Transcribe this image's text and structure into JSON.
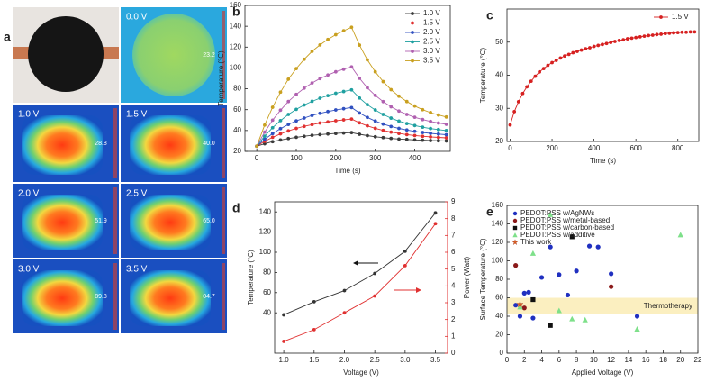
{
  "panel_a": {
    "label": "a",
    "images": [
      {
        "voltage": "0.0 V",
        "reading": "23.2"
      },
      {
        "voltage": "1.0 V",
        "reading": "28.8"
      },
      {
        "voltage": "1.5 V",
        "reading": "40.0"
      },
      {
        "voltage": "2.0 V",
        "reading": "51.9"
      },
      {
        "voltage": "2.5 V",
        "reading": "65.0"
      },
      {
        "voltage": "3.0 V",
        "reading": "89.8"
      },
      {
        "voltage": "3.5 V",
        "reading": "04.7"
      }
    ]
  },
  "chart_data": [
    {
      "panel_label": "b",
      "type": "line",
      "xlabel": "Time (s)",
      "ylabel": "Temperature (°C)",
      "x": [
        0,
        20,
        40,
        60,
        80,
        100,
        120,
        140,
        160,
        180,
        200,
        220,
        240,
        260,
        280,
        300,
        320,
        340,
        360,
        380,
        400,
        420,
        440,
        460,
        480
      ],
      "series": [
        {
          "name": "1.0 V",
          "color": "#3a3a3a",
          "values": [
            25,
            27.3,
            29.3,
            30.9,
            32.3,
            33.5,
            34.5,
            35.4,
            36.1,
            36.7,
            37.2,
            37.6,
            38,
            36.4,
            35.1,
            34.0,
            33.2,
            32.4,
            31.8,
            31.4,
            31.0,
            30.7,
            30.4,
            30.2,
            30.0
          ]
        },
        {
          "name": "1.5 V",
          "color": "#e03030",
          "values": [
            25,
            29.6,
            33.5,
            36.8,
            39.6,
            42.0,
            44.0,
            45.7,
            47.2,
            48.3,
            49.4,
            50.2,
            51,
            47.4,
            44.5,
            42.1,
            40.1,
            38.5,
            37.2,
            36.1,
            35.2,
            34.5,
            33.9,
            33.4,
            33.0
          ]
        },
        {
          "name": "2.0 V",
          "color": "#3050c0",
          "values": [
            25,
            31.6,
            37.1,
            41.8,
            45.8,
            49.2,
            52.0,
            54.5,
            56.5,
            58.2,
            59.7,
            60.9,
            62,
            56.8,
            52.6,
            49.1,
            46.2,
            43.9,
            42.0,
            40.5,
            39.2,
            38.1,
            37.3,
            36.6,
            36.0
          ]
        },
        {
          "name": "2.5 V",
          "color": "#1fa0a0",
          "values": [
            25,
            34.6,
            42.7,
            49.5,
            55.4,
            60.3,
            64.5,
            68.0,
            71.0,
            73.5,
            75.7,
            77.4,
            79,
            71.2,
            64.8,
            59.7,
            55.4,
            51.9,
            49.0,
            46.7,
            44.8,
            43.2,
            41.9,
            40.9,
            40.0
          ]
        },
        {
          "name": "3.0 V",
          "color": "#b060b0",
          "values": [
            25,
            38.5,
            49.9,
            59.5,
            67.8,
            74.6,
            80.6,
            85.6,
            89.8,
            93.2,
            96.3,
            98.8,
            101,
            90.1,
            81.0,
            73.7,
            67.7,
            62.8,
            58.7,
            55.4,
            52.7,
            50.5,
            48.7,
            47.2,
            46.0
          ]
        },
        {
          "name": "3.5 V",
          "color": "#c9a020",
          "values": [
            25,
            45.3,
            62.3,
            76.8,
            89.2,
            99.4,
            108.3,
            115.9,
            122.1,
            127.4,
            131.9,
            135.7,
            139,
            121.9,
            107.8,
            96.3,
            86.9,
            79.2,
            72.9,
            67.8,
            63.5,
            60.0,
            57.2,
            54.9,
            53.0
          ]
        }
      ],
      "xlim": [
        -30,
        490
      ],
      "xticks": [
        0,
        100,
        200,
        300,
        400
      ],
      "ylim": [
        20,
        160
      ],
      "yticks": [
        20,
        40,
        60,
        80,
        100,
        120,
        140,
        160
      ],
      "legend": "upper right"
    },
    {
      "panel_label": "c",
      "type": "line",
      "xlabel": "Time (s)",
      "ylabel": "Temperature (°C)",
      "x": [
        0,
        20,
        40,
        60,
        80,
        100,
        120,
        140,
        160,
        180,
        200,
        220,
        240,
        260,
        280,
        300,
        320,
        340,
        360,
        380,
        400,
        420,
        440,
        460,
        480,
        500,
        520,
        540,
        560,
        580,
        600,
        620,
        640,
        660,
        680,
        700,
        720,
        740,
        760,
        780,
        800,
        820,
        840,
        860,
        880
      ],
      "series": [
        {
          "name": "1.5 V",
          "color": "#d62020",
          "values": [
            25,
            29,
            32,
            34.5,
            36.5,
            38.2,
            39.7,
            41,
            42,
            43,
            43.8,
            44.5,
            45.2,
            45.8,
            46.3,
            46.8,
            47.2,
            47.6,
            48,
            48.3,
            48.7,
            49,
            49.3,
            49.6,
            49.9,
            50.2,
            50.5,
            50.7,
            51,
            51.2,
            51.4,
            51.6,
            51.8,
            52,
            52.1,
            52.3,
            52.4,
            52.6,
            52.7,
            52.8,
            52.9,
            53,
            53,
            53.1,
            53.1
          ]
        }
      ],
      "xlim": [
        -15,
        900
      ],
      "xticks": [
        0,
        200,
        400,
        600,
        800
      ],
      "ylim": [
        20,
        60
      ],
      "yticks": [
        20,
        30,
        40,
        50
      ],
      "legend": "upper right"
    },
    {
      "panel_label": "d",
      "type": "line",
      "xlabel": "Voltage (V)",
      "ylabel": "Temperature (°C)",
      "y2label": "Power (Watt)",
      "x": [
        1,
        1.5,
        2,
        2.5,
        3,
        3.5
      ],
      "series": [
        {
          "color": "#333333",
          "values": [
            38,
            51,
            62,
            79,
            101,
            139
          ]
        },
        {
          "color": "#e03030",
          "axis": "y2",
          "values": [
            0.7,
            1.4,
            2.4,
            3.4,
            5.2,
            7.7
          ]
        }
      ],
      "xlim": [
        0.85,
        3.7
      ],
      "xticks": [
        {
          "value": 1,
          "label": "1.0"
        },
        {
          "value": 1.5,
          "label": "1.5"
        },
        {
          "value": 2,
          "label": "2.0"
        },
        {
          "value": 2.5,
          "label": "2.5"
        },
        {
          "value": 3,
          "label": "3.0"
        },
        {
          "value": 3.5,
          "label": "3.5"
        }
      ],
      "ylim": [
        0,
        150
      ],
      "yticks": [
        40,
        60,
        80,
        100,
        120,
        140
      ],
      "y2lim": [
        0,
        9
      ],
      "y2ticks": [
        0,
        1,
        2,
        3,
        4,
        5,
        6,
        7,
        8,
        9
      ]
    },
    {
      "panel_label": "e",
      "type": "scatter",
      "xlabel": "Applied Voltage (V)",
      "ylabel": "Surface Temperature (°C)",
      "series": [
        {
          "name": "PEDOT:PSS w/AgNWs",
          "color": "#2030c0",
          "marker": "circle",
          "x": [
            1,
            1.5,
            2,
            2.5,
            3,
            4,
            5,
            6,
            7,
            8,
            9.5,
            10.5,
            12,
            15
          ],
          "values": [
            52,
            40,
            65,
            66,
            38,
            82,
            115,
            85,
            63,
            89,
            116,
            115,
            86,
            40
          ]
        },
        {
          "name": "PEDOT:PSS w/metal-based",
          "color": "#8b1a1a",
          "marker": "circle",
          "x": [
            1,
            2,
            12
          ],
          "values": [
            95,
            49,
            72
          ]
        },
        {
          "name": "PEDOT:PSS w/carbon-based",
          "color": "#111111",
          "marker": "square",
          "x": [
            3,
            5,
            7.5
          ],
          "values": [
            58,
            30,
            126
          ]
        },
        {
          "name": "PEDOT:PSS w/additive",
          "color": "#7ee08a",
          "marker": "triangle",
          "x": [
            1.5,
            3,
            5,
            6,
            7.5,
            9,
            15,
            20
          ],
          "values": [
            50,
            108,
            150,
            46,
            37,
            36,
            26,
            128
          ]
        },
        {
          "name": "This work",
          "color": "#e06020",
          "marker": "star",
          "x": [
            1.5
          ],
          "values": [
            53
          ]
        }
      ],
      "band": {
        "range": [
          42,
          60
        ],
        "label": "Thermotherapy",
        "color": "#fbefc0"
      },
      "xlim": [
        0,
        22
      ],
      "xticks": [
        0,
        2,
        4,
        6,
        8,
        10,
        12,
        14,
        16,
        18,
        20,
        22
      ],
      "ylim": [
        0,
        160
      ],
      "yticks": [
        0,
        20,
        40,
        60,
        80,
        100,
        120,
        140,
        160
      ],
      "legend": "upper left"
    }
  ]
}
